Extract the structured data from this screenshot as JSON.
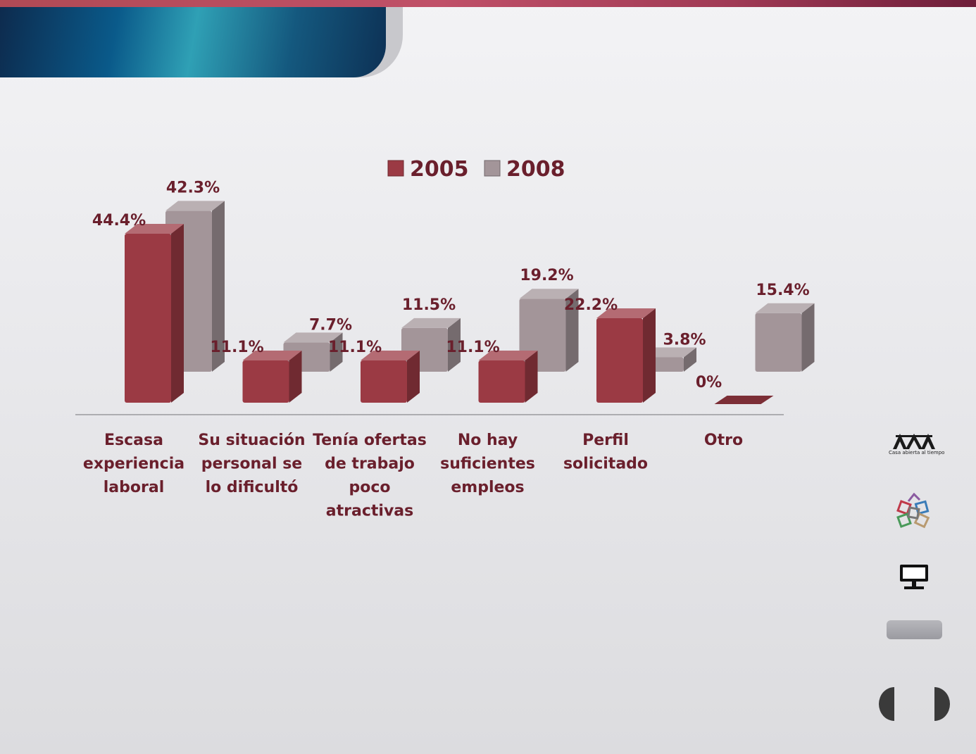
{
  "colors": {
    "series_2005": "#9b3a44",
    "series_2008": "#a39599",
    "label_text": "#6a1f2c",
    "axis_line": "#9a9a9e"
  },
  "sidebar": {
    "logo_text": "Casa abierta al tiempo",
    "icons": [
      "uam-logo-icon",
      "cubes-logo-icon",
      "monitor-icon",
      "prev-arrow-icon",
      "next-arrow-icon"
    ]
  },
  "chart_data": {
    "type": "bar",
    "title": "",
    "xlabel": "",
    "ylabel": "",
    "ylim": [
      0,
      50
    ],
    "legend_position": "top-center",
    "categories": [
      [
        "Escasa",
        "experiencia",
        "laboral"
      ],
      [
        "Su situación",
        "personal se",
        "lo dificultó"
      ],
      [
        "Tenía ofertas",
        "de trabajo",
        "poco",
        "atractivas"
      ],
      [
        "No hay",
        "suficientes",
        "empleos"
      ],
      [
        "Perfil",
        "solicitado"
      ],
      [
        "Otro"
      ]
    ],
    "series": [
      {
        "name": "2005",
        "values": [
          44.4,
          11.1,
          11.1,
          11.1,
          22.2,
          0
        ],
        "labels": [
          "44.4%",
          "11.1%",
          "11.1%",
          "11.1%",
          "22.2%",
          "0%"
        ]
      },
      {
        "name": "2008",
        "values": [
          42.3,
          7.7,
          11.5,
          19.2,
          3.8,
          15.4
        ],
        "labels": [
          "42.3%",
          "7.7%",
          "11.5%",
          "19.2%",
          "3.8%",
          "15.4%"
        ]
      }
    ]
  }
}
